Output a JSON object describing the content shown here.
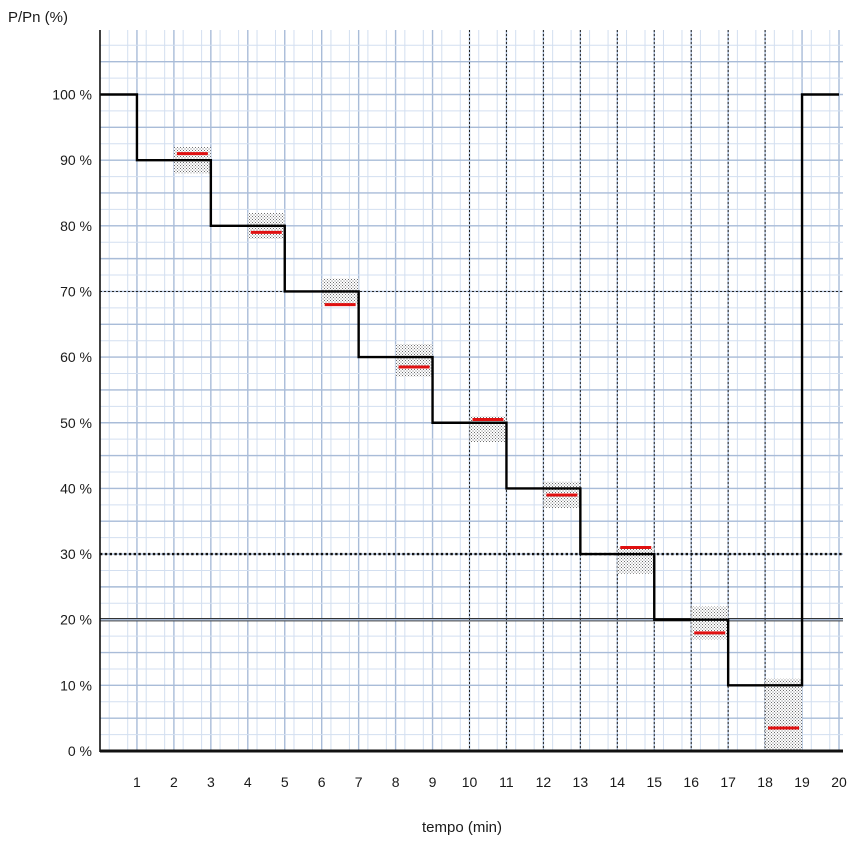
{
  "chart_data": {
    "type": "line",
    "title": "",
    "ylabel": "P/Pn (%)",
    "xlabel": "tempo (min)",
    "xlim": [
      0,
      20
    ],
    "ylim": [
      0,
      100
    ],
    "x_ticks": [
      1,
      2,
      3,
      4,
      5,
      6,
      7,
      8,
      9,
      10,
      11,
      12,
      13,
      14,
      15,
      16,
      17,
      18,
      19,
      20
    ],
    "x_tick_labels": [
      "1",
      "2",
      "3",
      "4",
      "5",
      "6",
      "7",
      "8",
      "9",
      "10",
      "11",
      "12",
      "13",
      "14",
      "15",
      "16",
      "17",
      "18",
      "19",
      "20"
    ],
    "y_ticks": [
      0,
      10,
      20,
      30,
      40,
      50,
      60,
      70,
      80,
      90,
      100
    ],
    "y_tick_labels": [
      "0 %",
      "10 %",
      "20 %",
      "30 %",
      "40 %",
      "50 %",
      "60 %",
      "70 %",
      "80 %",
      "90 %",
      "100 %"
    ],
    "grid": true,
    "reference_lines": [
      {
        "y": 70,
        "style": "dotted"
      },
      {
        "y": 30,
        "style": "dotted-bold"
      },
      {
        "y": 20,
        "style": "double"
      }
    ],
    "dotted_vertical_lines_x": [
      10,
      11,
      12,
      13,
      14,
      15,
      16,
      17,
      18
    ],
    "setpoint_steps": [
      {
        "x_start": 0,
        "x_end": 1,
        "y": 100
      },
      {
        "x_start": 1,
        "x_end": 3,
        "y": 90
      },
      {
        "x_start": 3,
        "x_end": 5,
        "y": 80
      },
      {
        "x_start": 5,
        "x_end": 7,
        "y": 70
      },
      {
        "x_start": 7,
        "x_end": 9,
        "y": 60
      },
      {
        "x_start": 9,
        "x_end": 11,
        "y": 50
      },
      {
        "x_start": 11,
        "x_end": 13,
        "y": 40
      },
      {
        "x_start": 13,
        "x_end": 15,
        "y": 30
      },
      {
        "x_start": 15,
        "x_end": 17,
        "y": 20
      },
      {
        "x_start": 17,
        "x_end": 19,
        "y": 10
      },
      {
        "x_start": 19,
        "x_end": 20,
        "y": 100
      }
    ],
    "measured_points": [
      {
        "x_start": 2,
        "x_end": 3,
        "y": 91,
        "band": [
          88,
          92
        ]
      },
      {
        "x_start": 4,
        "x_end": 5,
        "y": 79,
        "band": [
          78,
          82
        ]
      },
      {
        "x_start": 6,
        "x_end": 7,
        "y": 68,
        "band": [
          68,
          72
        ]
      },
      {
        "x_start": 8,
        "x_end": 9,
        "y": 58.5,
        "band": [
          57,
          62
        ]
      },
      {
        "x_start": 10,
        "x_end": 11,
        "y": 50.5,
        "band": [
          47,
          51
        ]
      },
      {
        "x_start": 12,
        "x_end": 13,
        "y": 39,
        "band": [
          37,
          41
        ]
      },
      {
        "x_start": 14,
        "x_end": 15,
        "y": 31,
        "band": [
          27,
          31
        ]
      },
      {
        "x_start": 16,
        "x_end": 17,
        "y": 18,
        "band": [
          17,
          22
        ]
      },
      {
        "x_start": 18,
        "x_end": 19,
        "y": 3.5,
        "band": [
          0,
          11
        ]
      }
    ],
    "colors": {
      "setpoint_line": "#000000",
      "measured_marker": "#e01010",
      "grid_major": "#a9bcd8",
      "grid_minor": "#d3dff0",
      "band_fill": "#888888"
    }
  }
}
